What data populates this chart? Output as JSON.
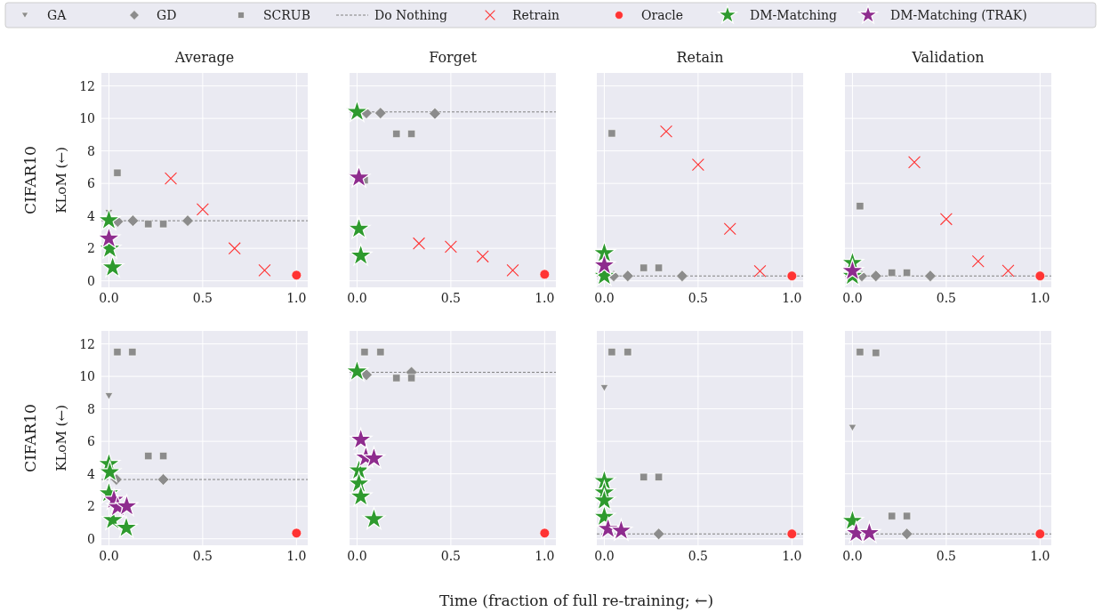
{
  "chart_data": [
    {
      "type": "scatter",
      "title": "Average",
      "ylabel": "KLoM (←)",
      "annotations": [
        "CIFAR10"
      ],
      "xlim": [
        -0.04,
        1.06
      ],
      "ylim": [
        -0.4,
        12.8
      ],
      "xticks": [
        {
          "value": 0,
          "label": "0.0"
        },
        {
          "value": 0.5,
          "label": "0.5"
        },
        {
          "value": 1,
          "label": "1.0"
        }
      ],
      "yticks": [
        0,
        2,
        4,
        6,
        8,
        10,
        12
      ],
      "grid": true,
      "legend": "top",
      "ref_lines": [
        {
          "axis": "y",
          "value": 3.7,
          "label": "Do Nothing",
          "color": "#808080",
          "line_style": "dashed"
        }
      ],
      "series": [
        {
          "name": "GA",
          "color": "#8c8c8c",
          "marker": "triangle",
          "x": [
            0
          ],
          "values": [
            4.2
          ]
        },
        {
          "name": "GD",
          "color": "#8c8c8c",
          "marker": "diamond",
          "x": [
            0.047,
            0.128,
            0.42
          ],
          "values": [
            3.65,
            3.7,
            3.7
          ]
        },
        {
          "name": "SCRUB",
          "color": "#8c8c8c",
          "marker": "square",
          "x": [
            0.045,
            0.21,
            0.29
          ],
          "values": [
            6.65,
            3.5,
            3.5
          ]
        },
        {
          "name": "Retrain",
          "color": "#ff3333",
          "marker": "cross",
          "x": [
            0.33,
            0.5,
            0.67,
            0.83
          ],
          "values": [
            6.3,
            4.4,
            2.0,
            0.65
          ]
        },
        {
          "name": "Oracle",
          "color": "#ff3333",
          "marker": "circle",
          "x": [
            1.0
          ],
          "values": [
            0.35
          ]
        },
        {
          "name": "DM-Matching",
          "color": "#2e9a2e",
          "marker": "star",
          "x": [
            0,
            0.005,
            0.02
          ],
          "values": [
            3.73,
            1.97,
            0.82
          ]
        },
        {
          "name": "DM-Matching (TRAK)",
          "color": "#8e2c8e",
          "marker": "star",
          "x": [
            0
          ],
          "values": [
            2.6
          ]
        }
      ]
    },
    {
      "type": "scatter",
      "title": "Forget",
      "xlim": [
        -0.04,
        1.06
      ],
      "ylim": [
        -0.4,
        12.8
      ],
      "xticks": [
        {
          "value": 0,
          "label": "0.0"
        },
        {
          "value": 0.5,
          "label": "0.5"
        },
        {
          "value": 1,
          "label": "1.0"
        }
      ],
      "yticks": [
        0,
        2,
        4,
        6,
        8,
        10,
        12
      ],
      "tick_labels": "x",
      "grid": true,
      "ref_lines": [
        {
          "axis": "y",
          "value": 10.4,
          "color": "#808080",
          "line_style": "dashed"
        }
      ],
      "series": [
        {
          "color": "#8c8c8c",
          "marker": "diamond",
          "x": [
            0.05,
            0.125,
            0.415
          ],
          "values": [
            10.33,
            10.33,
            10.3
          ]
        },
        {
          "color": "#8c8c8c",
          "marker": "square",
          "x": [
            0.04,
            0.21,
            0.29
          ],
          "values": [
            6.2,
            9.05,
            9.05
          ]
        },
        {
          "color": "#ff3333",
          "marker": "cross",
          "x": [
            0.33,
            0.5,
            0.67,
            0.83
          ],
          "values": [
            2.3,
            2.1,
            1.5,
            0.65
          ]
        },
        {
          "color": "#ff3333",
          "marker": "circle",
          "x": [
            1.0
          ],
          "values": [
            0.4
          ]
        },
        {
          "color": "#2e9a2e",
          "marker": "star",
          "x": [
            0,
            0.01,
            0.02
          ],
          "values": [
            10.4,
            3.2,
            1.55
          ]
        },
        {
          "color": "#8e2c8e",
          "marker": "star",
          "x": [
            0.01
          ],
          "values": [
            6.35
          ]
        }
      ]
    },
    {
      "type": "scatter",
      "title": "Retain",
      "xlim": [
        -0.04,
        1.06
      ],
      "ylim": [
        -0.4,
        12.8
      ],
      "xticks": [
        {
          "value": 0,
          "label": "0.0"
        },
        {
          "value": 0.5,
          "label": "0.5"
        },
        {
          "value": 1,
          "label": "1.0"
        }
      ],
      "yticks": [
        0,
        2,
        4,
        6,
        8,
        10,
        12
      ],
      "tick_labels": "x",
      "grid": true,
      "ref_lines": [
        {
          "axis": "y",
          "value": 0.3,
          "color": "#808080",
          "line_style": "dashed"
        }
      ],
      "series": [
        {
          "color": "#8c8c8c",
          "marker": "diamond",
          "x": [
            0.05,
            0.125,
            0.415
          ],
          "values": [
            0.3,
            0.3,
            0.3
          ]
        },
        {
          "color": "#8c8c8c",
          "marker": "square",
          "x": [
            0.04,
            0.21,
            0.29
          ],
          "values": [
            9.08,
            0.8,
            0.8
          ]
        },
        {
          "color": "#ff3333",
          "marker": "cross",
          "x": [
            0.33,
            0.5,
            0.67,
            0.83
          ],
          "values": [
            9.2,
            7.15,
            3.2,
            0.6
          ]
        },
        {
          "color": "#ff3333",
          "marker": "circle",
          "x": [
            1.0
          ],
          "values": [
            0.3
          ]
        },
        {
          "color": "#2e9a2e",
          "marker": "star",
          "x": [
            0,
            0
          ],
          "values": [
            1.7,
            0.3
          ]
        },
        {
          "color": "#8e2c8e",
          "marker": "star",
          "x": [
            0
          ],
          "values": [
            0.95
          ]
        }
      ]
    },
    {
      "type": "scatter",
      "title": "Validation",
      "xlim": [
        -0.04,
        1.06
      ],
      "ylim": [
        -0.4,
        12.8
      ],
      "xticks": [
        {
          "value": 0,
          "label": "0.0"
        },
        {
          "value": 0.5,
          "label": "0.5"
        },
        {
          "value": 1,
          "label": "1.0"
        }
      ],
      "yticks": [
        0,
        2,
        4,
        6,
        8,
        10,
        12
      ],
      "tick_labels": "x",
      "grid": true,
      "ref_lines": [
        {
          "axis": "y",
          "value": 0.3,
          "color": "#808080",
          "line_style": "dashed"
        }
      ],
      "series": [
        {
          "color": "#8c8c8c",
          "marker": "diamond",
          "x": [
            0.05,
            0.125,
            0.415
          ],
          "values": [
            0.3,
            0.3,
            0.3
          ]
        },
        {
          "color": "#8c8c8c",
          "marker": "square",
          "x": [
            0.04,
            0.21,
            0.29
          ],
          "values": [
            4.6,
            0.5,
            0.5
          ]
        },
        {
          "color": "#ff3333",
          "marker": "cross",
          "x": [
            0.33,
            0.5,
            0.67,
            0.83
          ],
          "values": [
            7.3,
            3.8,
            1.2,
            0.62
          ]
        },
        {
          "color": "#ff3333",
          "marker": "circle",
          "x": [
            1.0
          ],
          "values": [
            0.3
          ]
        },
        {
          "color": "#2e9a2e",
          "marker": "star",
          "x": [
            0,
            0
          ],
          "values": [
            1.1,
            0.3
          ]
        },
        {
          "color": "#8e2c8e",
          "marker": "star",
          "x": [
            0
          ],
          "values": [
            0.6
          ]
        }
      ]
    },
    {
      "type": "scatter",
      "ylabel": "KLoM (←)",
      "annotations": [
        "CIFAR10",
        "Time (fraction of full re-training; ←)"
      ],
      "xlim": [
        -0.04,
        1.06
      ],
      "ylim": [
        -0.4,
        12.8
      ],
      "xticks": [
        {
          "value": 0,
          "label": "0.0"
        },
        {
          "value": 0.5,
          "label": "0.5"
        },
        {
          "value": 1,
          "label": "1.0"
        }
      ],
      "yticks": [
        0,
        2,
        4,
        6,
        8,
        10,
        12
      ],
      "grid": true,
      "ref_lines": [
        {
          "axis": "y",
          "value": 3.65,
          "color": "#808080",
          "line_style": "dashed"
        }
      ],
      "series": [
        {
          "color": "#8c8c8c",
          "marker": "triangle",
          "x": [
            0
          ],
          "values": [
            8.8
          ]
        },
        {
          "color": "#8c8c8c",
          "marker": "diamond",
          "x": [
            0.04,
            0.29
          ],
          "values": [
            3.65,
            3.65
          ]
        },
        {
          "color": "#8c8c8c",
          "marker": "square",
          "x": [
            0.045,
            0.125,
            0.21,
            0.29
          ],
          "values": [
            11.5,
            11.5,
            5.1,
            5.1
          ]
        },
        {
          "color": "#ff3333",
          "marker": "circle",
          "x": [
            1.0
          ],
          "values": [
            0.35
          ]
        },
        {
          "color": "#2e9a2e",
          "marker": "star",
          "x": [
            0,
            0.005,
            0,
            0.02,
            0.093
          ],
          "values": [
            4.6,
            4.1,
            2.8,
            1.15,
            0.67
          ]
        },
        {
          "color": "#8e2c8e",
          "marker": "star",
          "x": [
            0.027,
            0.047,
            0.095
          ],
          "values": [
            2.4,
            1.95,
            2.0
          ]
        }
      ]
    },
    {
      "type": "scatter",
      "xlim": [
        -0.04,
        1.06
      ],
      "ylim": [
        -0.4,
        12.8
      ],
      "xticks": [
        {
          "value": 0,
          "label": "0.0"
        },
        {
          "value": 0.5,
          "label": "0.5"
        },
        {
          "value": 1,
          "label": "1.0"
        }
      ],
      "yticks": [
        0,
        2,
        4,
        6,
        8,
        10,
        12
      ],
      "tick_labels": "x",
      "grid": true,
      "ref_lines": [
        {
          "axis": "y",
          "value": 10.25,
          "color": "#808080",
          "line_style": "dashed"
        }
      ],
      "series": [
        {
          "color": "#8c8c8c",
          "marker": "diamond",
          "x": [
            0.05,
            0.29
          ],
          "values": [
            10.1,
            10.25
          ]
        },
        {
          "color": "#8c8c8c",
          "marker": "square",
          "x": [
            0.04,
            0.125,
            0.21,
            0.29
          ],
          "values": [
            11.5,
            11.5,
            9.9,
            9.9
          ]
        },
        {
          "color": "#ff3333",
          "marker": "circle",
          "x": [
            1.0
          ],
          "values": [
            0.35
          ]
        },
        {
          "color": "#2e9a2e",
          "marker": "star",
          "x": [
            0,
            0.01,
            0.01,
            0.02,
            0.09
          ],
          "values": [
            10.3,
            4.2,
            3.4,
            2.6,
            1.2
          ]
        },
        {
          "color": "#8e2c8e",
          "marker": "star",
          "x": [
            0.02,
            0.047,
            0.09
          ],
          "values": [
            6.1,
            5.0,
            4.95
          ]
        }
      ]
    },
    {
      "type": "scatter",
      "xlim": [
        -0.04,
        1.06
      ],
      "ylim": [
        -0.4,
        12.8
      ],
      "xticks": [
        {
          "value": 0,
          "label": "0.0"
        },
        {
          "value": 0.5,
          "label": "0.5"
        },
        {
          "value": 1,
          "label": "1.0"
        }
      ],
      "yticks": [
        0,
        2,
        4,
        6,
        8,
        10,
        12
      ],
      "tick_labels": "x",
      "grid": true,
      "ref_lines": [
        {
          "axis": "y",
          "value": 0.3,
          "color": "#808080",
          "line_style": "dashed"
        }
      ],
      "series": [
        {
          "color": "#8c8c8c",
          "marker": "triangle",
          "x": [
            0
          ],
          "values": [
            9.3
          ]
        },
        {
          "color": "#8c8c8c",
          "marker": "diamond",
          "x": [
            0.29
          ],
          "values": [
            0.3
          ]
        },
        {
          "color": "#8c8c8c",
          "marker": "square",
          "x": [
            0.04,
            0.125,
            0.21,
            0.29
          ],
          "values": [
            11.5,
            11.5,
            3.8,
            3.8
          ]
        },
        {
          "color": "#ff3333",
          "marker": "circle",
          "x": [
            1.0
          ],
          "values": [
            0.3
          ]
        },
        {
          "color": "#2e9a2e",
          "marker": "star",
          "x": [
            0,
            0,
            0,
            0
          ],
          "values": [
            3.55,
            2.85,
            2.35,
            1.35
          ]
        },
        {
          "color": "#8e2c8e",
          "marker": "star",
          "x": [
            0.02,
            0.09
          ],
          "values": [
            0.6,
            0.5
          ]
        }
      ]
    },
    {
      "type": "scatter",
      "xlim": [
        -0.04,
        1.06
      ],
      "ylim": [
        -0.4,
        12.8
      ],
      "xticks": [
        {
          "value": 0,
          "label": "0.0"
        },
        {
          "value": 0.5,
          "label": "0.5"
        },
        {
          "value": 1,
          "label": "1.0"
        }
      ],
      "yticks": [
        0,
        2,
        4,
        6,
        8,
        10,
        12
      ],
      "tick_labels": "x",
      "grid": true,
      "ref_lines": [
        {
          "axis": "y",
          "value": 0.3,
          "color": "#808080",
          "line_style": "dashed"
        }
      ],
      "series": [
        {
          "color": "#8c8c8c",
          "marker": "triangle",
          "x": [
            0
          ],
          "values": [
            6.85
          ]
        },
        {
          "color": "#8c8c8c",
          "marker": "diamond",
          "x": [
            0.29
          ],
          "values": [
            0.3
          ]
        },
        {
          "color": "#8c8c8c",
          "marker": "square",
          "x": [
            0.04,
            0.125,
            0.21,
            0.29
          ],
          "values": [
            11.5,
            11.45,
            1.4,
            1.4
          ]
        },
        {
          "color": "#ff3333",
          "marker": "circle",
          "x": [
            1.0
          ],
          "values": [
            0.3
          ]
        },
        {
          "color": "#2e9a2e",
          "marker": "star",
          "x": [
            0
          ],
          "values": [
            1.1
          ]
        },
        {
          "color": "#8e2c8e",
          "marker": "star",
          "x": [
            0.02,
            0.09
          ],
          "values": [
            0.35,
            0.35
          ]
        }
      ]
    }
  ]
}
